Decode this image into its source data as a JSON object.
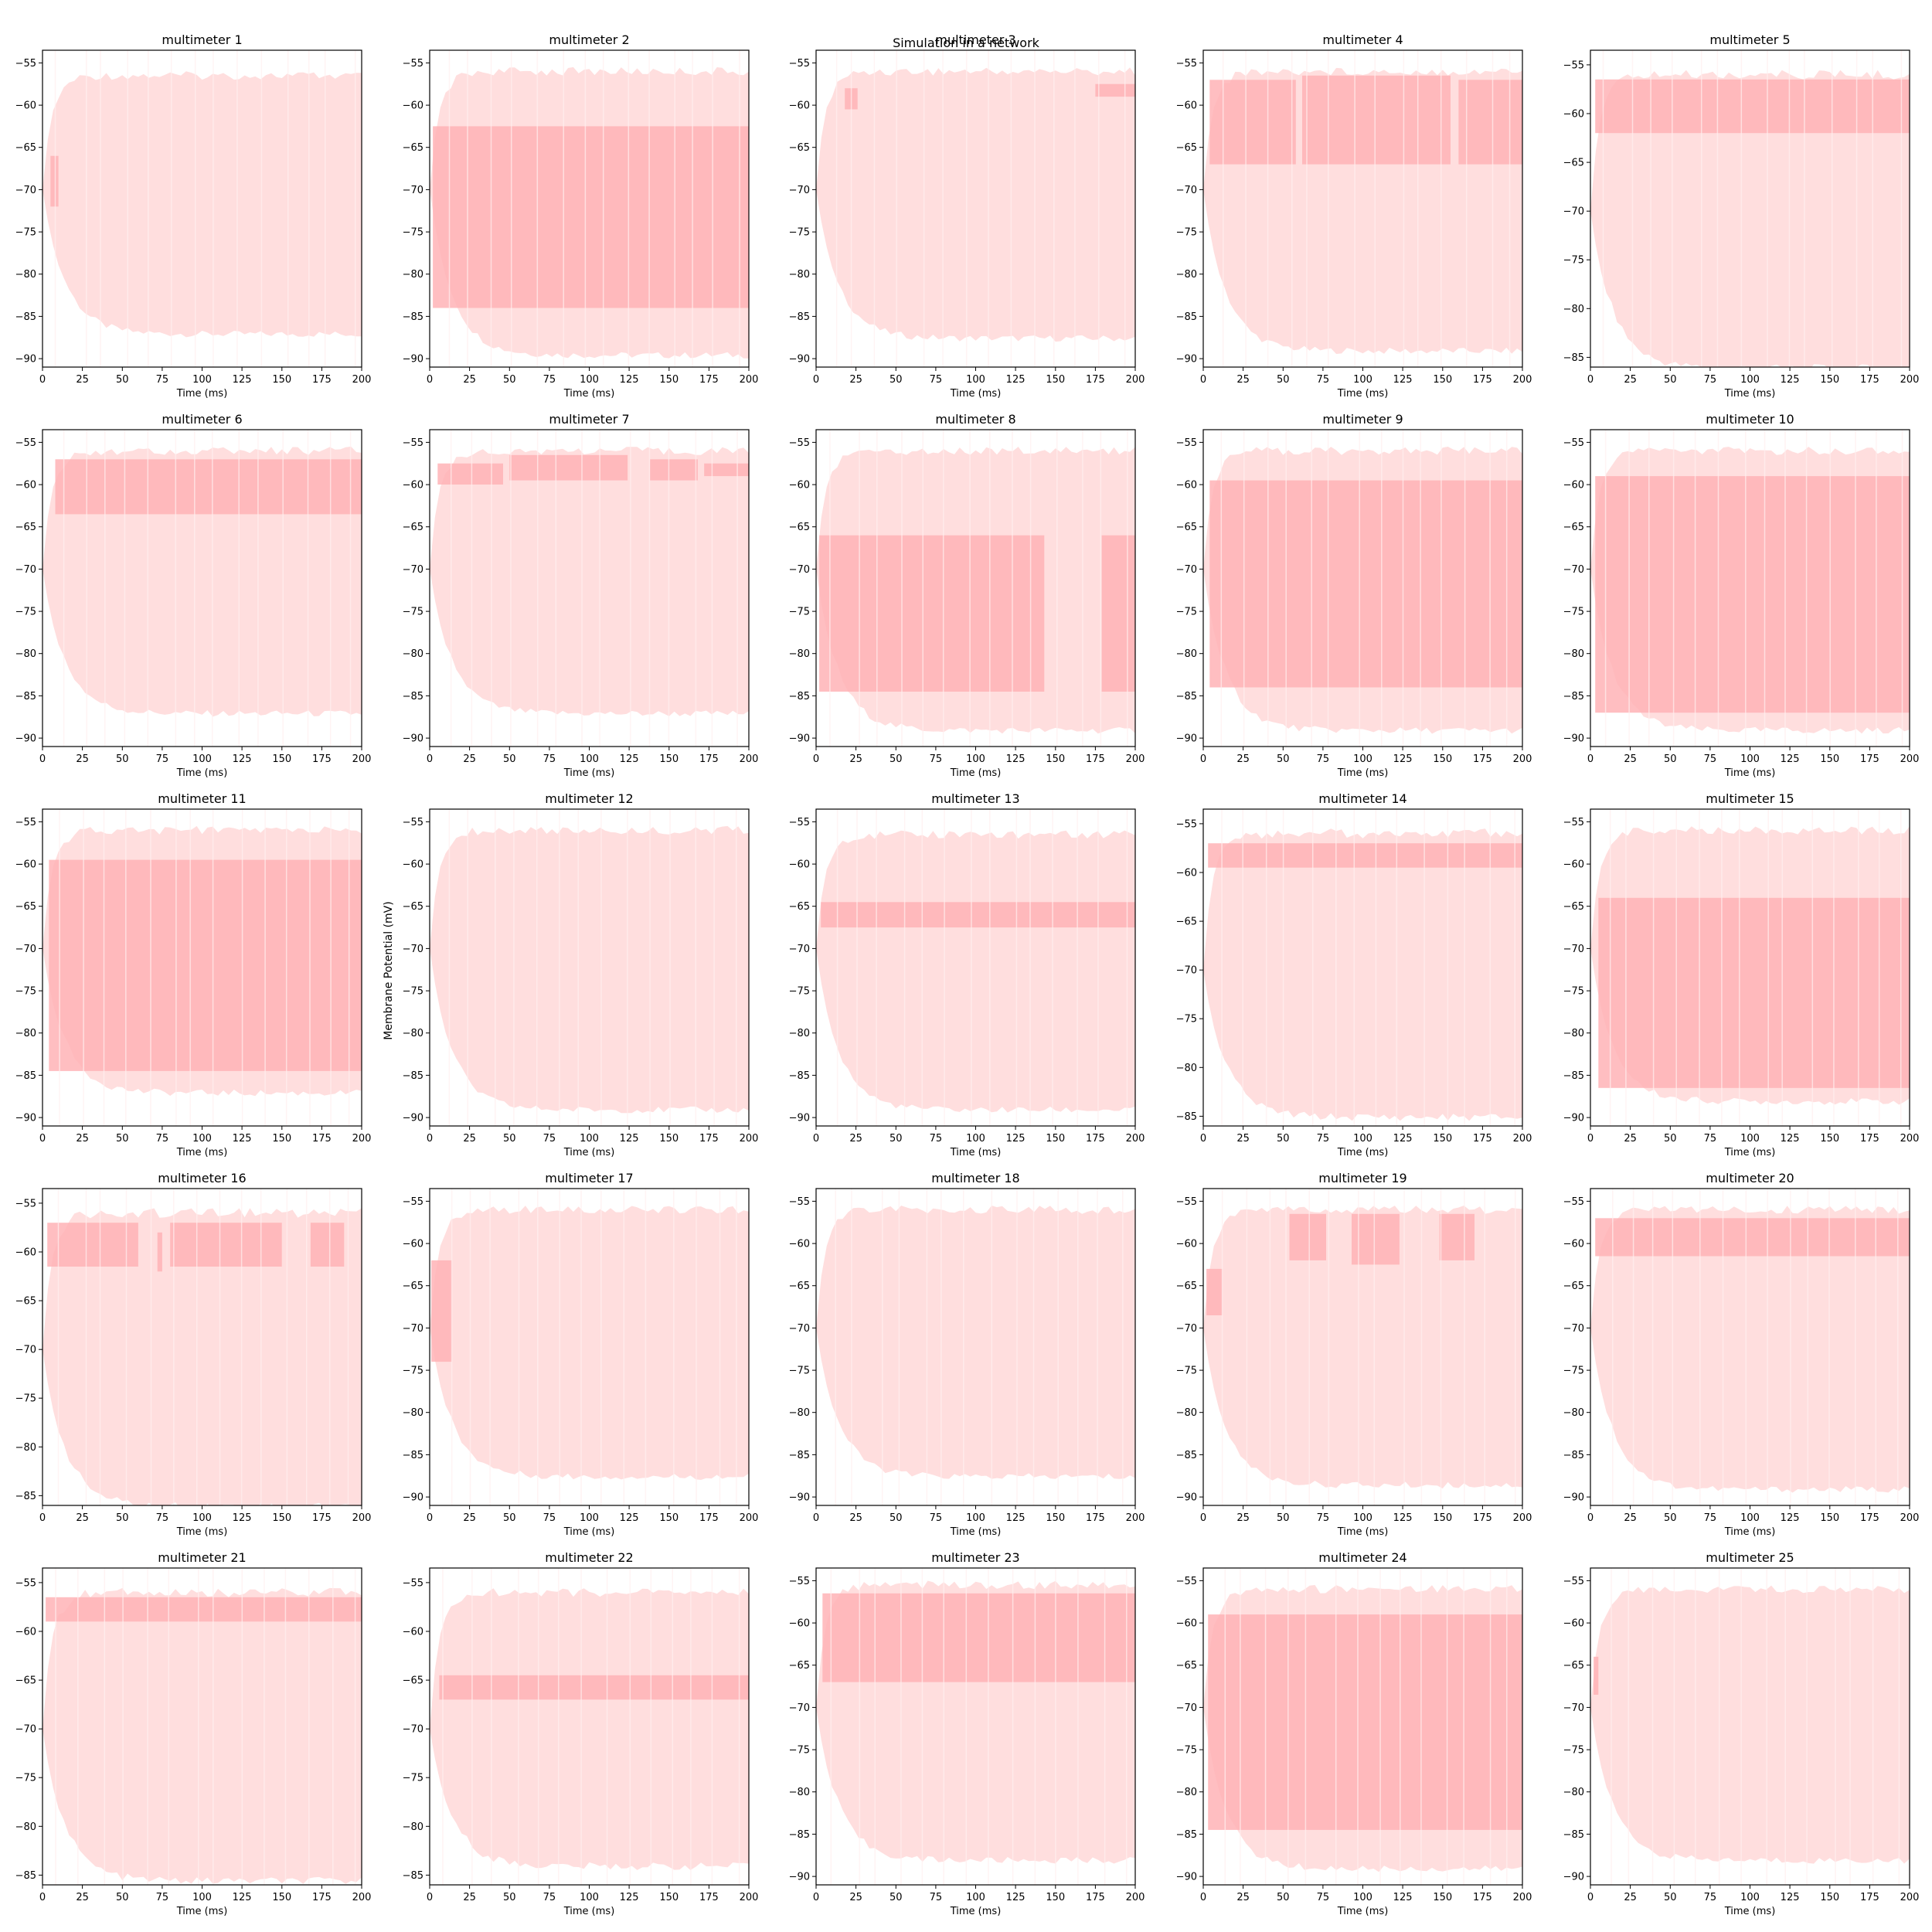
{
  "figure": {
    "suptitle": "Simulation in a network",
    "ylabel": "Membrane Potential (mV)",
    "xlabel": "Time (ms)"
  },
  "colors": {
    "envelope": "#ffdede",
    "band": "#ffb3b6",
    "axis": "#000000",
    "stripe": "#fff0f0"
  },
  "chart_data": [
    {
      "type": "area",
      "title": "multimeter 1",
      "xlim": [
        0,
        200
      ],
      "ylim": [
        -90,
        -55
      ],
      "xticks": [
        0,
        25,
        50,
        75,
        100,
        125,
        150,
        175,
        200
      ],
      "yticks": [
        -90,
        -85,
        -80,
        -75,
        -70,
        -65,
        -60,
        -55
      ],
      "xlabel": "Time (ms)",
      "envelope": {
        "upper": -56,
        "lower": -87.5
      },
      "bands": [
        {
          "x": [
            5,
            10
          ],
          "upper": -66,
          "lower": -72
        }
      ]
    },
    {
      "type": "area",
      "title": "multimeter 2",
      "xlim": [
        0,
        200
      ],
      "ylim": [
        -90,
        -55
      ],
      "xticks": [
        0,
        25,
        50,
        75,
        100,
        125,
        150,
        175,
        200
      ],
      "yticks": [
        -90,
        -85,
        -80,
        -75,
        -70,
        -65,
        -60,
        -55
      ],
      "xlabel": "Time (ms)",
      "envelope": {
        "upper": -55.5,
        "lower": -90
      },
      "bands": [
        {
          "x": [
            2,
            200
          ],
          "upper": -62.5,
          "lower": -84
        }
      ]
    },
    {
      "type": "area",
      "title": "multimeter 3",
      "xlim": [
        0,
        200
      ],
      "ylim": [
        -90,
        -55
      ],
      "xticks": [
        0,
        25,
        50,
        75,
        100,
        125,
        150,
        175,
        200
      ],
      "yticks": [
        -90,
        -85,
        -80,
        -75,
        -70,
        -65,
        -60,
        -55
      ],
      "xlabel": "Time (ms)",
      "envelope": {
        "upper": -55.5,
        "lower": -88
      },
      "bands": [
        {
          "x": [
            18,
            26
          ],
          "upper": -58,
          "lower": -60.5
        },
        {
          "x": [
            175,
            200
          ],
          "upper": -57.5,
          "lower": -59
        }
      ]
    },
    {
      "type": "area",
      "title": "multimeter 4",
      "xlim": [
        0,
        200
      ],
      "ylim": [
        -90,
        -55
      ],
      "xticks": [
        0,
        25,
        50,
        75,
        100,
        125,
        150,
        175,
        200
      ],
      "yticks": [
        -90,
        -85,
        -80,
        -75,
        -70,
        -65,
        -60,
        -55
      ],
      "xlabel": "Time (ms)",
      "envelope": {
        "upper": -55.5,
        "lower": -89.5
      },
      "bands": [
        {
          "x": [
            4,
            58
          ],
          "upper": -57,
          "lower": -67
        },
        {
          "x": [
            62,
            155
          ],
          "upper": -56.5,
          "lower": -67
        },
        {
          "x": [
            160,
            200
          ],
          "upper": -57,
          "lower": -67
        }
      ]
    },
    {
      "type": "area",
      "title": "multimeter 5",
      "xlim": [
        0,
        200
      ],
      "ylim": [
        -85,
        -55
      ],
      "xticks": [
        0,
        25,
        50,
        75,
        100,
        125,
        150,
        175,
        200
      ],
      "yticks": [
        -85,
        -80,
        -75,
        -70,
        -65,
        -60,
        -55
      ],
      "xlabel": "Time (ms)",
      "envelope": {
        "upper": -55.5,
        "lower": -86.5
      },
      "bands": [
        {
          "x": [
            3,
            200
          ],
          "upper": -56.5,
          "lower": -62
        }
      ]
    },
    {
      "type": "area",
      "title": "multimeter 6",
      "xlim": [
        0,
        200
      ],
      "ylim": [
        -90,
        -55
      ],
      "xticks": [
        0,
        25,
        50,
        75,
        100,
        125,
        150,
        175,
        200
      ],
      "yticks": [
        -90,
        -85,
        -80,
        -75,
        -70,
        -65,
        -60,
        -55
      ],
      "xlabel": "Time (ms)",
      "envelope": {
        "upper": -55.5,
        "lower": -87.5
      },
      "bands": [
        {
          "x": [
            8,
            200
          ],
          "upper": -57,
          "lower": -63.5
        }
      ]
    },
    {
      "type": "area",
      "title": "multimeter 7",
      "xlim": [
        0,
        200
      ],
      "ylim": [
        -90,
        -55
      ],
      "xticks": [
        0,
        25,
        50,
        75,
        100,
        125,
        150,
        175,
        200
      ],
      "yticks": [
        -90,
        -85,
        -80,
        -75,
        -70,
        -65,
        -60,
        -55
      ],
      "xlabel": "Time (ms)",
      "envelope": {
        "upper": -55.5,
        "lower": -87.5
      },
      "bands": [
        {
          "x": [
            5,
            46
          ],
          "upper": -57.5,
          "lower": -60
        },
        {
          "x": [
            50,
            124
          ],
          "upper": -56.5,
          "lower": -59.5
        },
        {
          "x": [
            138,
            168
          ],
          "upper": -57,
          "lower": -59.5
        },
        {
          "x": [
            172,
            200
          ],
          "upper": -57.5,
          "lower": -59
        }
      ]
    },
    {
      "type": "area",
      "title": "multimeter 8",
      "xlim": [
        0,
        200
      ],
      "ylim": [
        -90,
        -55
      ],
      "xticks": [
        0,
        25,
        50,
        75,
        100,
        125,
        150,
        175,
        200
      ],
      "yticks": [
        -90,
        -85,
        -80,
        -75,
        -70,
        -65,
        -60,
        -55
      ],
      "xlabel": "Time (ms)",
      "envelope": {
        "upper": -55.5,
        "lower": -89.5
      },
      "bands": [
        {
          "x": [
            2,
            143
          ],
          "upper": -66,
          "lower": -84.5
        },
        {
          "x": [
            179,
            200
          ],
          "upper": -66,
          "lower": -84.5
        }
      ]
    },
    {
      "type": "area",
      "title": "multimeter 9",
      "xlim": [
        0,
        200
      ],
      "ylim": [
        -90,
        -55
      ],
      "xticks": [
        0,
        25,
        50,
        75,
        100,
        125,
        150,
        175,
        200
      ],
      "yticks": [
        -90,
        -85,
        -80,
        -75,
        -70,
        -65,
        -60,
        -55
      ],
      "xlabel": "Time (ms)",
      "envelope": {
        "upper": -55.5,
        "lower": -89.5
      },
      "bands": [
        {
          "x": [
            4,
            200
          ],
          "upper": -59.5,
          "lower": -84
        }
      ]
    },
    {
      "type": "area",
      "title": "multimeter 10",
      "xlim": [
        0,
        200
      ],
      "ylim": [
        -90,
        -55
      ],
      "xticks": [
        0,
        25,
        50,
        75,
        100,
        125,
        150,
        175,
        200
      ],
      "yticks": [
        -90,
        -85,
        -80,
        -75,
        -70,
        -65,
        -60,
        -55
      ],
      "xlabel": "Time (ms)",
      "envelope": {
        "upper": -55.5,
        "lower": -89.5
      },
      "bands": [
        {
          "x": [
            3,
            200
          ],
          "upper": -59,
          "lower": -87
        }
      ]
    },
    {
      "type": "area",
      "title": "multimeter 11",
      "xlim": [
        0,
        200
      ],
      "ylim": [
        -90,
        -55
      ],
      "xticks": [
        0,
        25,
        50,
        75,
        100,
        125,
        150,
        175,
        200
      ],
      "yticks": [
        -90,
        -85,
        -80,
        -75,
        -70,
        -65,
        -60,
        -55
      ],
      "xlabel": "Time (ms)",
      "envelope": {
        "upper": -55.5,
        "lower": -87.5
      },
      "bands": [
        {
          "x": [
            4,
            200
          ],
          "upper": -59.5,
          "lower": -84.5
        }
      ]
    },
    {
      "type": "area",
      "title": "multimeter 12",
      "xlim": [
        0,
        200
      ],
      "ylim": [
        -90,
        -55
      ],
      "xticks": [
        0,
        25,
        50,
        75,
        100,
        125,
        150,
        175,
        200
      ],
      "yticks": [
        -90,
        -85,
        -80,
        -75,
        -70,
        -65,
        -60,
        -55
      ],
      "xlabel": "Time (ms)",
      "envelope": {
        "upper": -55.5,
        "lower": -89.5
      },
      "bands": []
    },
    {
      "type": "area",
      "title": "multimeter 13",
      "xlim": [
        0,
        200
      ],
      "ylim": [
        -90,
        -55
      ],
      "xticks": [
        0,
        25,
        50,
        75,
        100,
        125,
        150,
        175,
        200
      ],
      "yticks": [
        -90,
        -85,
        -80,
        -75,
        -70,
        -65,
        -60,
        -55
      ],
      "xlabel": "Time (ms)",
      "envelope": {
        "upper": -56,
        "lower": -89.5
      },
      "bands": [
        {
          "x": [
            3,
            200
          ],
          "upper": -64.5,
          "lower": -67.5
        }
      ]
    },
    {
      "type": "area",
      "title": "multimeter 14",
      "xlim": [
        0,
        200
      ],
      "ylim": [
        -85,
        -55
      ],
      "xticks": [
        0,
        25,
        50,
        75,
        100,
        125,
        150,
        175,
        200
      ],
      "yticks": [
        -85,
        -80,
        -75,
        -70,
        -65,
        -60,
        -55
      ],
      "xlabel": "Time (ms)",
      "envelope": {
        "upper": -55.5,
        "lower": -85.5
      },
      "bands": [
        {
          "x": [
            3,
            200
          ],
          "upper": -57,
          "lower": -59.5
        }
      ]
    },
    {
      "type": "area",
      "title": "multimeter 15",
      "xlim": [
        0,
        200
      ],
      "ylim": [
        -90,
        -55
      ],
      "xticks": [
        0,
        25,
        50,
        75,
        100,
        125,
        150,
        175,
        200
      ],
      "yticks": [
        -90,
        -85,
        -80,
        -75,
        -70,
        -65,
        -60,
        -55
      ],
      "xlabel": "Time (ms)",
      "envelope": {
        "upper": -55.5,
        "lower": -88.5
      },
      "bands": [
        {
          "x": [
            5,
            200
          ],
          "upper": -64,
          "lower": -86.5
        }
      ]
    },
    {
      "type": "area",
      "title": "multimeter 16",
      "xlim": [
        0,
        200
      ],
      "ylim": [
        -85,
        -55
      ],
      "xticks": [
        0,
        25,
        50,
        75,
        100,
        125,
        150,
        175,
        200
      ],
      "yticks": [
        -85,
        -80,
        -75,
        -70,
        -65,
        -60,
        -55
      ],
      "xlabel": "Time (ms)",
      "envelope": {
        "upper": -55.5,
        "lower": -86.5
      },
      "bands": [
        {
          "x": [
            3,
            60
          ],
          "upper": -57,
          "lower": -61.5
        },
        {
          "x": [
            72,
            75
          ],
          "upper": -58,
          "lower": -62
        },
        {
          "x": [
            80,
            150
          ],
          "upper": -57,
          "lower": -61.5
        },
        {
          "x": [
            168,
            189
          ],
          "upper": -57,
          "lower": -61.5
        }
      ]
    },
    {
      "type": "area",
      "title": "multimeter 17",
      "xlim": [
        0,
        200
      ],
      "ylim": [
        -90,
        -55
      ],
      "xticks": [
        0,
        25,
        50,
        75,
        100,
        125,
        150,
        175,
        200
      ],
      "yticks": [
        -90,
        -85,
        -80,
        -75,
        -70,
        -65,
        -60,
        -55
      ],
      "xlabel": "Time (ms)",
      "envelope": {
        "upper": -55.5,
        "lower": -88
      },
      "bands": [
        {
          "x": [
            1,
            14
          ],
          "upper": -62,
          "lower": -74
        }
      ]
    },
    {
      "type": "area",
      "title": "multimeter 18",
      "xlim": [
        0,
        200
      ],
      "ylim": [
        -90,
        -55
      ],
      "xticks": [
        0,
        25,
        50,
        75,
        100,
        125,
        150,
        175,
        200
      ],
      "yticks": [
        -90,
        -85,
        -80,
        -75,
        -70,
        -65,
        -60,
        -55
      ],
      "xlabel": "Time (ms)",
      "envelope": {
        "upper": -55.5,
        "lower": -88
      },
      "bands": []
    },
    {
      "type": "area",
      "title": "multimeter 19",
      "xlim": [
        0,
        200
      ],
      "ylim": [
        -90,
        -55
      ],
      "xticks": [
        0,
        25,
        50,
        75,
        100,
        125,
        150,
        175,
        200
      ],
      "yticks": [
        -90,
        -85,
        -80,
        -75,
        -70,
        -65,
        -60,
        -55
      ],
      "xlabel": "Time (ms)",
      "envelope": {
        "upper": -55.5,
        "lower": -89
      },
      "bands": [
        {
          "x": [
            2,
            12
          ],
          "upper": -63,
          "lower": -68.5
        },
        {
          "x": [
            54,
            77
          ],
          "upper": -56.5,
          "lower": -62
        },
        {
          "x": [
            93,
            123
          ],
          "upper": -56.5,
          "lower": -62.5
        },
        {
          "x": [
            148,
            170
          ],
          "upper": -56.5,
          "lower": -62
        }
      ]
    },
    {
      "type": "area",
      "title": "multimeter 20",
      "xlim": [
        0,
        200
      ],
      "ylim": [
        -90,
        -55
      ],
      "xticks": [
        0,
        25,
        50,
        75,
        100,
        125,
        150,
        175,
        200
      ],
      "yticks": [
        -90,
        -85,
        -80,
        -75,
        -70,
        -65,
        -60,
        -55
      ],
      "xlabel": "Time (ms)",
      "envelope": {
        "upper": -55.5,
        "lower": -89.5
      },
      "bands": [
        {
          "x": [
            3,
            200
          ],
          "upper": -57,
          "lower": -61.5
        }
      ]
    },
    {
      "type": "area",
      "title": "multimeter 21",
      "xlim": [
        0,
        200
      ],
      "ylim": [
        -85,
        -55
      ],
      "xticks": [
        0,
        25,
        50,
        75,
        100,
        125,
        150,
        175,
        200
      ],
      "yticks": [
        -85,
        -80,
        -75,
        -70,
        -65,
        -60,
        -55
      ],
      "xlabel": "Time (ms)",
      "envelope": {
        "upper": -55.5,
        "lower": -86
      },
      "bands": [
        {
          "x": [
            2,
            200
          ],
          "upper": -56.5,
          "lower": -59
        }
      ]
    },
    {
      "type": "area",
      "title": "multimeter 22",
      "xlim": [
        0,
        200
      ],
      "ylim": [
        -85,
        -55
      ],
      "xticks": [
        0,
        25,
        50,
        75,
        100,
        125,
        150,
        175,
        200
      ],
      "yticks": [
        -85,
        -80,
        -75,
        -70,
        -65,
        -60,
        -55
      ],
      "xlabel": "Time (ms)",
      "envelope": {
        "upper": -55.5,
        "lower": -84.5
      },
      "bands": [
        {
          "x": [
            6,
            200
          ],
          "upper": -64.5,
          "lower": -67
        }
      ]
    },
    {
      "type": "area",
      "title": "multimeter 23",
      "xlim": [
        0,
        200
      ],
      "ylim": [
        -90,
        -55
      ],
      "xticks": [
        0,
        25,
        50,
        75,
        100,
        125,
        150,
        175,
        200
      ],
      "yticks": [
        -90,
        -85,
        -80,
        -75,
        -70,
        -65,
        -60,
        -55
      ],
      "xlabel": "Time (ms)",
      "envelope": {
        "upper": -55,
        "lower": -88.5
      },
      "bands": [
        {
          "x": [
            4,
            200
          ],
          "upper": -56.5,
          "lower": -67
        }
      ]
    },
    {
      "type": "area",
      "title": "multimeter 24",
      "xlim": [
        0,
        200
      ],
      "ylim": [
        -90,
        -55
      ],
      "xticks": [
        0,
        25,
        50,
        75,
        100,
        125,
        150,
        175,
        200
      ],
      "yticks": [
        -90,
        -85,
        -80,
        -75,
        -70,
        -65,
        -60,
        -55
      ],
      "xlabel": "Time (ms)",
      "envelope": {
        "upper": -55.5,
        "lower": -89.5
      },
      "bands": [
        {
          "x": [
            3,
            200
          ],
          "upper": -59,
          "lower": -84.5
        }
      ]
    },
    {
      "type": "area",
      "title": "multimeter 25",
      "xlim": [
        0,
        200
      ],
      "ylim": [
        -90,
        -55
      ],
      "xticks": [
        0,
        25,
        50,
        75,
        100,
        125,
        150,
        175,
        200
      ],
      "yticks": [
        -90,
        -85,
        -80,
        -75,
        -70,
        -65,
        -60,
        -55
      ],
      "xlabel": "Time (ms)",
      "envelope": {
        "upper": -55.5,
        "lower": -88.5
      },
      "bands": [
        {
          "x": [
            2,
            5
          ],
          "upper": -64,
          "lower": -68.5
        }
      ]
    }
  ]
}
